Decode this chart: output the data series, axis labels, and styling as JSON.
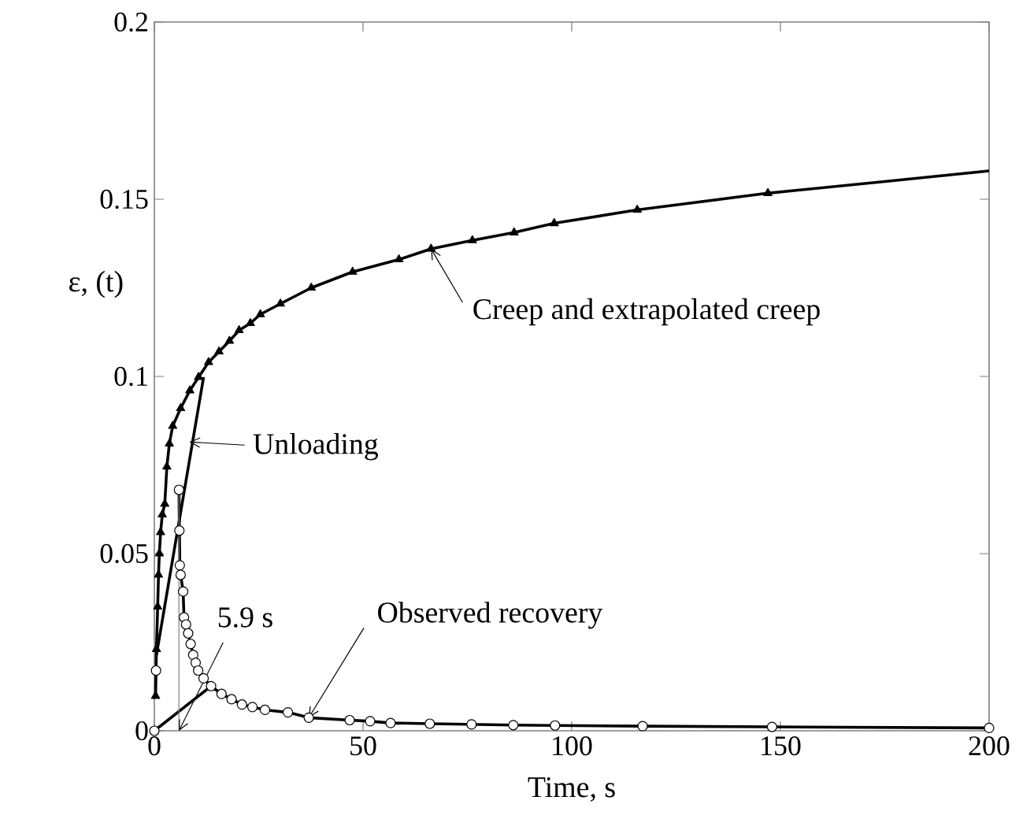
{
  "chart_data": {
    "type": "line",
    "xlabel": "Time, s",
    "ylabel": "ε, (t)",
    "xlim": [
      0,
      200
    ],
    "ylim": [
      0,
      0.2
    ],
    "xticks": [
      0,
      50,
      100,
      150,
      200
    ],
    "yticks": [
      0,
      0.05,
      0.1,
      0.15,
      0.2
    ],
    "series": [
      {
        "color": "#000000",
        "marker": "triangle",
        "line_style": "solid",
        "x": [
          0.3,
          0.5,
          0.8,
          1.0,
          1.2,
          1.5,
          1.9,
          2.5,
          3.0,
          3.6,
          4.4,
          6.3,
          8.5,
          10.6,
          13,
          15.5,
          18,
          20.3,
          23,
          25.4,
          30.2,
          37.6,
          47.5,
          58.6,
          66.3,
          76.2,
          86.2,
          95.8,
          115.7,
          147
        ],
        "values": [
          0.0098,
          0.023,
          0.035,
          0.044,
          0.05,
          0.056,
          0.061,
          0.064,
          0.0745,
          0.081,
          0.086,
          0.091,
          0.096,
          0.0998,
          0.104,
          0.107,
          0.11,
          0.113,
          0.115,
          0.1175,
          0.1205,
          0.125,
          0.1295,
          0.133,
          0.136,
          0.1384,
          0.1406,
          0.1432,
          0.147,
          0.1517
        ]
      },
      {
        "color": "#000000",
        "marker": "none",
        "line_style": "solid",
        "x": [
          147,
          175,
          200
        ],
        "values": [
          0.1517,
          0.155,
          0.158
        ]
      },
      {
        "color": "#000000",
        "marker": "circle",
        "line_style": "solid",
        "x": [
          5.9,
          6.0,
          6.1,
          6.3,
          6.9,
          7.1,
          7.6,
          8.1,
          8.7,
          9.3,
          9.9,
          10.5,
          11.8,
          13.6,
          16.1,
          18.5,
          21,
          23.5,
          26.5,
          32,
          37,
          46.8,
          51.7,
          56.6,
          66,
          76,
          86,
          96,
          117,
          148,
          200
        ],
        "values": [
          0.068,
          0.0565,
          0.0467,
          0.044,
          0.0393,
          0.032,
          0.03,
          0.0275,
          0.0245,
          0.0214,
          0.0192,
          0.017,
          0.0148,
          0.0126,
          0.0104,
          0.0089,
          0.0074,
          0.0067,
          0.0059,
          0.0052,
          0.0037,
          0.003,
          0.0027,
          0.0022,
          0.002,
          0.0018,
          0.0016,
          0.0015,
          0.0013,
          0.0011,
          0.0008
        ]
      },
      {
        "type": "scatter",
        "color": "#000000",
        "marker": "circle",
        "x": [
          0,
          0.4
        ],
        "values": [
          0,
          0.017
        ]
      },
      {
        "color": "#000000",
        "marker": "none",
        "line_style": "solid",
        "x": [
          0.5,
          11.8
        ],
        "values": [
          0.0214,
          0.0998
        ]
      },
      {
        "color": "#000000",
        "marker": "none",
        "line_style": "solid",
        "x": [
          0,
          13.6
        ],
        "values": [
          0,
          0.0126
        ]
      },
      {
        "color": "#808080",
        "marker": "none",
        "line_style": "solid",
        "x": [
          5.9,
          5.9
        ],
        "values": [
          0,
          0.068
        ]
      }
    ],
    "annotations": [
      {
        "text": "Creep and extrapolated creep",
        "x": 66.3,
        "y": 0.136
      },
      {
        "text": "Unloading",
        "x": 9.16,
        "y": 0.0815
      },
      {
        "text": "Observed recovery",
        "x": 37,
        "y": 0.0037
      },
      {
        "text": "5.9 s",
        "x": 5.9,
        "y": 0
      }
    ]
  }
}
